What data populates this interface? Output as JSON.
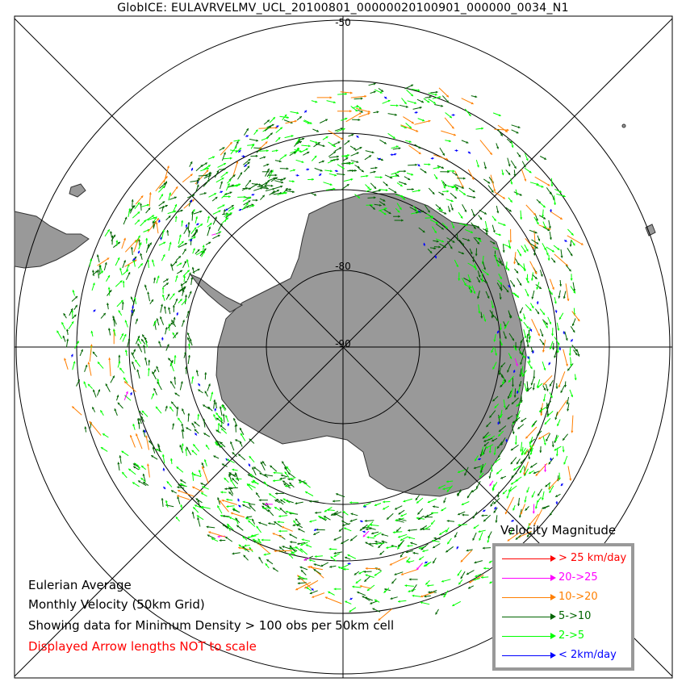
{
  "title": "GlobICE: EULAVRVELMV_UCL_20100801_00000020100901_000000_0034_N1",
  "map_labels": {
    "lat_outer": "-50",
    "lat_mid": "-80",
    "lat_pole": "-90"
  },
  "notes": {
    "line1": "Eulerian Average",
    "line2": "Monthly Velocity (50km Grid)",
    "line3": "Showing data for Minimum Density > 100 obs per 50km cell",
    "line4": "Displayed Arrow lengths NOT to scale"
  },
  "legend": {
    "title": "Velocity Magnitude",
    "items": [
      {
        "label": "> 25 km/day",
        "color": "#ff0000"
      },
      {
        "label": "20->25",
        "color": "#ff00ff"
      },
      {
        "label": "10->20",
        "color": "#ff7f00"
      },
      {
        "label": "5->10",
        "color": "#006400"
      },
      {
        "label": "2->5",
        "color": "#00ff00"
      },
      {
        "label": "< 2km/day",
        "color": "#0000ff"
      }
    ]
  },
  "colors": {
    "land": "#999999",
    "note_warning": "#ff0000",
    "legend_border": "#999999",
    "grid": "#000000"
  }
}
